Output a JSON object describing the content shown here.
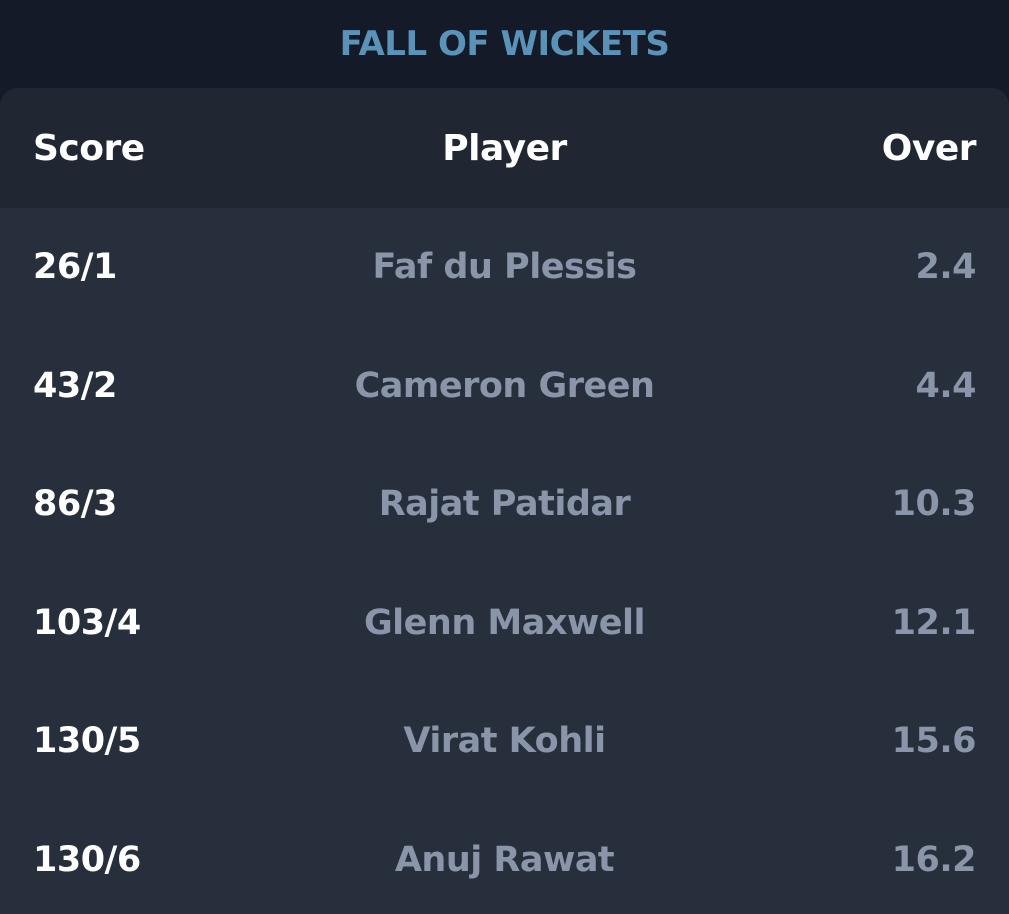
{
  "title": "FALL OF WICKETS",
  "colors": {
    "background": "#141a27",
    "card": "#282f3c",
    "header": "#202733",
    "title": "#5b93b8",
    "primary_text": "#ffffff",
    "muted_text": "#8a95aa"
  },
  "table": {
    "headers": {
      "score": "Score",
      "player": "Player",
      "over": "Over"
    },
    "rows": [
      {
        "score": "26/1",
        "player": "Faf du Plessis",
        "over": "2.4"
      },
      {
        "score": "43/2",
        "player": "Cameron Green",
        "over": "4.4"
      },
      {
        "score": "86/3",
        "player": "Rajat Patidar",
        "over": "10.3"
      },
      {
        "score": "103/4",
        "player": "Glenn Maxwell",
        "over": "12.1"
      },
      {
        "score": "130/5",
        "player": "Virat Kohli",
        "over": "15.6"
      },
      {
        "score": "130/6",
        "player": "Anuj Rawat",
        "over": "16.2"
      }
    ]
  }
}
